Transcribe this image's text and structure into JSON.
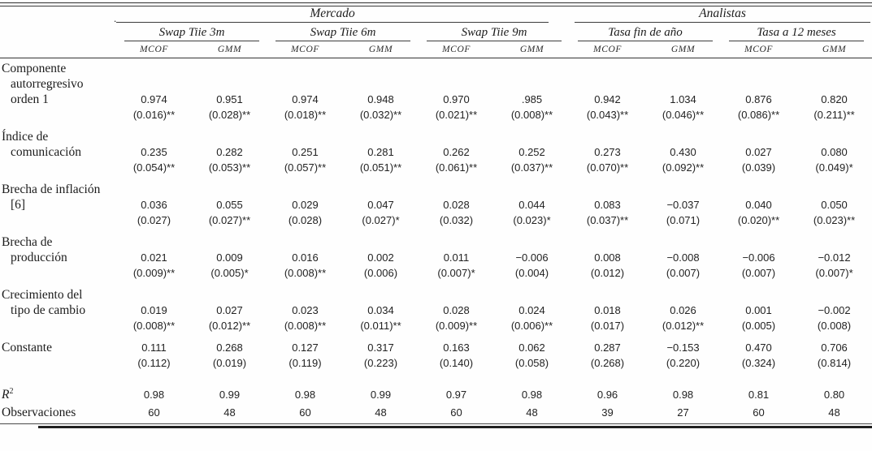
{
  "artifacts": {
    "stray_dot": "."
  },
  "table": {
    "top_groups": [
      {
        "label": "Mercado",
        "colspan": 6
      },
      {
        "label": "Analistas",
        "colspan": 4
      }
    ],
    "sub_groups": [
      {
        "label": "Swap Tiie 3m"
      },
      {
        "label": "Swap Tiie 6m"
      },
      {
        "label": "Swap Tiie 9m"
      },
      {
        "label": "Tasa fin de año"
      },
      {
        "label": "Tasa a 12 meses"
      }
    ],
    "estimator_headers": [
      "MCOF",
      "GMM",
      "MCOF",
      "GMM",
      "MCOF",
      "GMM",
      "MCOF",
      "GMM",
      "MCOF",
      "GMM"
    ],
    "blocks": [
      {
        "label_lines": [
          "Componente",
          "autorregresivo",
          "orden 1"
        ],
        "coef": [
          "0.974",
          "0.951",
          "0.974",
          "0.948",
          "0.970",
          ".985",
          "0.942",
          "1.034",
          "0.876",
          "0.820"
        ],
        "se": [
          "(0.016)**",
          "(0.028)**",
          "(0.018)**",
          "(0.032)**",
          "(0.021)**",
          "(0.008)**",
          "(0.043)**",
          "(0.046)**",
          "(0.086)**",
          "(0.211)**"
        ]
      },
      {
        "label_lines": [
          "Índice de",
          "comunicación"
        ],
        "coef": [
          "0.235",
          "0.282",
          "0.251",
          "0.281",
          "0.262",
          "0.252",
          "0.273",
          "0.430",
          "0.027",
          "0.080"
        ],
        "se": [
          "(0.054)**",
          "(0.053)**",
          "(0.057)**",
          "(0.051)**",
          "(0.061)**",
          "(0.037)**",
          "(0.070)**",
          "(0.092)**",
          "(0.039)",
          "(0.049)*"
        ]
      },
      {
        "label_lines": [
          "Brecha de inflación",
          "[6]"
        ],
        "coef": [
          "0.036",
          "0.055",
          "0.029",
          "0.047",
          "0.028",
          "0.044",
          "0.083",
          "−0.037",
          "0.040",
          "0.050"
        ],
        "se": [
          "(0.027)",
          "(0.027)**",
          "(0.028)",
          "(0.027)*",
          "(0.032)",
          "(0.023)*",
          "(0.037)**",
          "(0.071)",
          "(0.020)**",
          "(0.023)**"
        ]
      },
      {
        "label_lines": [
          "Brecha de",
          "producción"
        ],
        "coef": [
          "0.021",
          "0.009",
          "0.016",
          "0.002",
          "0.011",
          "−0.006",
          "0.008",
          "−0.008",
          "−0.006",
          "−0.012"
        ],
        "se": [
          "(0.009)**",
          "(0.005)*",
          "(0.008)**",
          "(0.006)",
          "(0.007)*",
          "(0.004)",
          "(0.012)",
          "(0.007)",
          "(0.007)",
          "(0.007)*"
        ]
      },
      {
        "label_lines": [
          "Crecimiento del",
          "tipo de cambio"
        ],
        "coef": [
          "0.019",
          "0.027",
          "0.023",
          "0.034",
          "0.028",
          "0.024",
          "0.018",
          "0.026",
          "0.001",
          "−0.002"
        ],
        "se": [
          "(0.008)**",
          "(0.012)**",
          "(0.008)**",
          "(0.011)**",
          "(0.009)**",
          "(0.006)**",
          "(0.017)",
          "(0.012)**",
          "(0.005)",
          "(0.008)"
        ]
      },
      {
        "label_lines": [
          "Constante"
        ],
        "coef": [
          "0.111",
          "0.268",
          "0.127",
          "0.317",
          "0.163",
          "0.062",
          "0.287",
          "−0.153",
          "0.470",
          "0.706"
        ],
        "se": [
          "(0.112)",
          "(0.019)",
          "(0.119)",
          "(0.223)",
          "(0.140)",
          "(0.058)",
          "(0.268)",
          "(0.220)",
          "(0.324)",
          "(0.814)"
        ]
      }
    ],
    "stats": [
      {
        "label_main": "R",
        "label_sup": "2",
        "label_italic": true,
        "values": [
          "0.98",
          "0.99",
          "0.98",
          "0.99",
          "0.97",
          "0.98",
          "0.96",
          "0.98",
          "0.81",
          "0.80"
        ]
      },
      {
        "label_main": "Observaciones",
        "label_sup": "",
        "label_italic": false,
        "values": [
          "60",
          "48",
          "60",
          "48",
          "60",
          "48",
          "39",
          "27",
          "60",
          "48"
        ]
      }
    ]
  }
}
